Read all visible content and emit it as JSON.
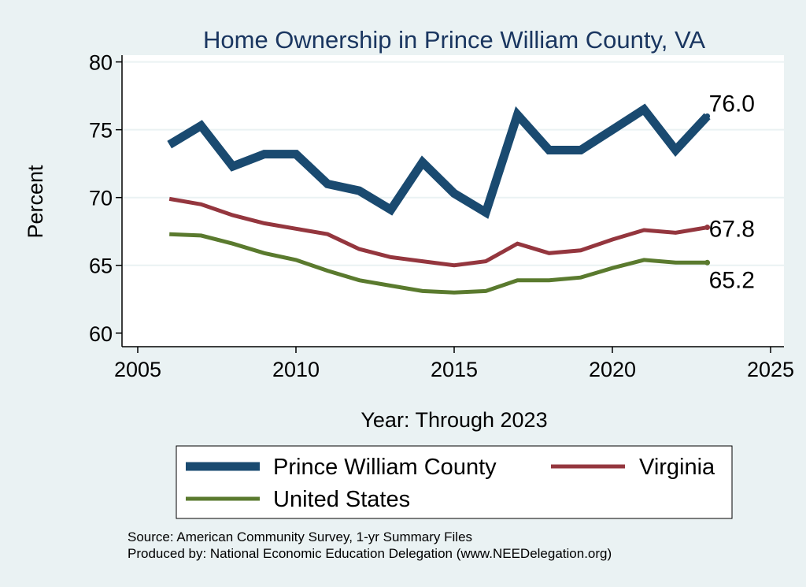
{
  "chart_data": {
    "type": "line",
    "title": "Home Ownership in Prince William County, VA",
    "xlabel": "Year: Through 2023",
    "ylabel": "Percent",
    "xlim": [
      2005,
      2025
    ],
    "ylim": [
      59,
      80.5
    ],
    "x_ticks": [
      2005,
      2010,
      2015,
      2020,
      2025
    ],
    "y_ticks": [
      60,
      65,
      70,
      75,
      80
    ],
    "grid": "horizontal",
    "x": [
      2006,
      2007,
      2008,
      2009,
      2010,
      2011,
      2012,
      2013,
      2014,
      2015,
      2016,
      2017,
      2018,
      2019,
      2020,
      2021,
      2022,
      2023
    ],
    "series": [
      {
        "name": "Prince William County",
        "color": "#1a4a70",
        "values": [
          73.9,
          75.3,
          72.3,
          73.2,
          73.2,
          71.0,
          70.5,
          69.1,
          72.6,
          70.3,
          68.9,
          76.1,
          73.5,
          73.5,
          75.0,
          76.5,
          73.5,
          76.0
        ],
        "end_label": "76.0"
      },
      {
        "name": "Virginia",
        "color": "#94363e",
        "values": [
          69.9,
          69.5,
          68.7,
          68.1,
          67.7,
          67.3,
          66.2,
          65.6,
          65.3,
          65.0,
          65.3,
          66.6,
          65.9,
          66.1,
          66.9,
          67.6,
          67.4,
          67.8
        ],
        "end_label": "67.8"
      },
      {
        "name": "United States",
        "color": "#5a7a2e",
        "values": [
          67.3,
          67.2,
          66.6,
          65.9,
          65.4,
          64.6,
          63.9,
          63.5,
          63.1,
          63.0,
          63.1,
          63.9,
          63.9,
          64.1,
          64.8,
          65.4,
          65.2,
          65.2
        ],
        "end_label": "65.2"
      }
    ],
    "legend_position": "bottom"
  },
  "footer": {
    "source": "Source: American Community Survey, 1-yr Summary Files",
    "produced_by": "Produced by: National Economic Education Delegation (www.NEEDelegation.org)"
  }
}
